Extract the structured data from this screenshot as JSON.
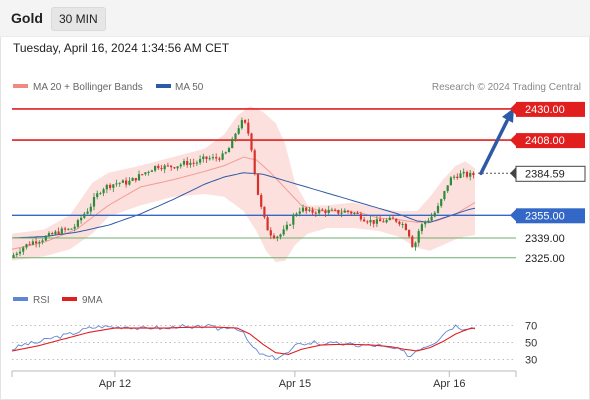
{
  "header": {
    "asset": "Gold",
    "timeframe": "30 MIN",
    "timestamp": "Tuesday, April 16, 2024 1:34:56 AM CET"
  },
  "legend": {
    "ma20_label": "MA 20 + Bollinger Bands",
    "ma50_label": "MA 50",
    "credit": "Research © 2024 Trading Central"
  },
  "colors": {
    "up_candle": "#2e8b3c",
    "down_candle": "#d8312a",
    "resistance": "#e21f1f",
    "support_main": "#3468c7",
    "support_minor": "#6fae6f",
    "arrow": "#2d5aa6",
    "bollinger_fill": "#fbd3d0",
    "ma20_line": "#f08a80",
    "ma50_line": "#2d5aa6",
    "rsi_line": "#5f86d6",
    "rsi_ma_line": "#e21f1f"
  },
  "chart_data": [
    {
      "type": "candlestick",
      "ylim": [
        2315,
        2437
      ],
      "x_ticks": [
        "Apr 12",
        "Apr 15",
        "Apr 16"
      ],
      "current_price": 2384.59,
      "forecast_target": 2430.0,
      "levels": [
        {
          "value": 2430.0,
          "label": "2430.00",
          "kind": "resistance"
        },
        {
          "value": 2408.0,
          "label": "2408.00",
          "kind": "resistance"
        },
        {
          "value": 2384.59,
          "label": "2384.59",
          "kind": "last"
        },
        {
          "value": 2355.0,
          "label": "2355.00",
          "kind": "pivot"
        },
        {
          "value": 2339.0,
          "label": "2339.00",
          "kind": "support"
        },
        {
          "value": 2325.0,
          "label": "2325.00",
          "kind": "support"
        }
      ],
      "close_path": [
        [
          0,
          2326
        ],
        [
          3,
          2332
        ],
        [
          6,
          2336
        ],
        [
          9,
          2338
        ],
        [
          12,
          2341
        ],
        [
          15,
          2344
        ],
        [
          18,
          2345
        ],
        [
          20,
          2348
        ],
        [
          22,
          2355
        ],
        [
          24,
          2360
        ],
        [
          26,
          2368
        ],
        [
          28,
          2374
        ],
        [
          30,
          2376
        ],
        [
          33,
          2378
        ],
        [
          36,
          2378
        ],
        [
          39,
          2382
        ],
        [
          42,
          2386
        ],
        [
          45,
          2390
        ],
        [
          48,
          2389
        ],
        [
          51,
          2390
        ],
        [
          54,
          2392
        ],
        [
          57,
          2392
        ],
        [
          60,
          2395
        ],
        [
          63,
          2395
        ],
        [
          66,
          2397
        ],
        [
          68,
          2404
        ],
        [
          70,
          2416
        ],
        [
          72,
          2422
        ],
        [
          74,
          2410
        ],
        [
          75,
          2395
        ],
        [
          76,
          2376
        ],
        [
          77,
          2364
        ],
        [
          78,
          2356
        ],
        [
          79,
          2348
        ],
        [
          80,
          2343
        ],
        [
          82,
          2340
        ],
        [
          84,
          2342
        ],
        [
          86,
          2348
        ],
        [
          88,
          2356
        ],
        [
          90,
          2360
        ],
        [
          92,
          2357
        ],
        [
          95,
          2358
        ],
        [
          98,
          2358
        ],
        [
          101,
          2357
        ],
        [
          104,
          2358
        ],
        [
          107,
          2356
        ],
        [
          110,
          2352
        ],
        [
          113,
          2350
        ],
        [
          116,
          2351
        ],
        [
          119,
          2352
        ],
        [
          121,
          2350
        ],
        [
          123,
          2345
        ],
        [
          124,
          2338
        ],
        [
          125,
          2330
        ],
        [
          126,
          2342
        ],
        [
          128,
          2350
        ],
        [
          130,
          2353
        ],
        [
          132,
          2358
        ],
        [
          134,
          2368
        ],
        [
          136,
          2380
        ],
        [
          138,
          2383
        ],
        [
          140,
          2384
        ],
        [
          142,
          2383
        ],
        [
          144,
          2384
        ]
      ],
      "ma20_path": [
        [
          0,
          2331
        ],
        [
          10,
          2336
        ],
        [
          20,
          2345
        ],
        [
          30,
          2362
        ],
        [
          40,
          2375
        ],
        [
          50,
          2380
        ],
        [
          60,
          2386
        ],
        [
          66,
          2390
        ],
        [
          72,
          2396
        ],
        [
          76,
          2394
        ],
        [
          80,
          2386
        ],
        [
          85,
          2374
        ],
        [
          90,
          2362
        ],
        [
          96,
          2358
        ],
        [
          102,
          2358
        ],
        [
          108,
          2357
        ],
        [
          114,
          2353
        ],
        [
          120,
          2352
        ],
        [
          126,
          2350
        ],
        [
          132,
          2351
        ],
        [
          138,
          2356
        ],
        [
          144,
          2364
        ]
      ],
      "bb_upper_path": [
        [
          0,
          2342
        ],
        [
          10,
          2345
        ],
        [
          18,
          2355
        ],
        [
          25,
          2378
        ],
        [
          30,
          2385
        ],
        [
          40,
          2390
        ],
        [
          50,
          2396
        ],
        [
          60,
          2402
        ],
        [
          66,
          2412
        ],
        [
          70,
          2425
        ],
        [
          74,
          2432
        ],
        [
          78,
          2428
        ],
        [
          82,
          2420
        ],
        [
          85,
          2405
        ],
        [
          88,
          2378
        ],
        [
          92,
          2362
        ],
        [
          98,
          2362
        ],
        [
          106,
          2364
        ],
        [
          114,
          2360
        ],
        [
          120,
          2358
        ],
        [
          126,
          2358
        ],
        [
          130,
          2368
        ],
        [
          134,
          2380
        ],
        [
          138,
          2390
        ],
        [
          141,
          2393
        ],
        [
          144,
          2388
        ]
      ],
      "bb_lower_path": [
        [
          0,
          2323
        ],
        [
          10,
          2326
        ],
        [
          18,
          2331
        ],
        [
          25,
          2342
        ],
        [
          30,
          2354
        ],
        [
          40,
          2362
        ],
        [
          50,
          2368
        ],
        [
          60,
          2370
        ],
        [
          66,
          2368
        ],
        [
          72,
          2358
        ],
        [
          76,
          2344
        ],
        [
          79,
          2330
        ],
        [
          82,
          2322
        ],
        [
          85,
          2323
        ],
        [
          88,
          2334
        ],
        [
          92,
          2342
        ],
        [
          98,
          2346
        ],
        [
          106,
          2346
        ],
        [
          114,
          2344
        ],
        [
          120,
          2340
        ],
        [
          126,
          2332
        ],
        [
          130,
          2330
        ],
        [
          134,
          2334
        ],
        [
          138,
          2338
        ],
        [
          141,
          2340
        ],
        [
          144,
          2341
        ]
      ],
      "ma50_path": [
        [
          0,
          2339
        ],
        [
          10,
          2340
        ],
        [
          20,
          2343
        ],
        [
          30,
          2348
        ],
        [
          40,
          2356
        ],
        [
          50,
          2366
        ],
        [
          60,
          2377
        ],
        [
          66,
          2382
        ],
        [
          72,
          2385
        ],
        [
          78,
          2384
        ],
        [
          84,
          2380
        ],
        [
          90,
          2376
        ],
        [
          96,
          2372
        ],
        [
          102,
          2368
        ],
        [
          108,
          2364
        ],
        [
          114,
          2360
        ],
        [
          120,
          2356
        ],
        [
          126,
          2351
        ],
        [
          130,
          2350
        ],
        [
          134,
          2353
        ],
        [
          138,
          2356
        ],
        [
          142,
          2359
        ],
        [
          144,
          2360
        ]
      ]
    },
    {
      "type": "line",
      "ylim": [
        20,
        80
      ],
      "y_ticks": [
        70,
        50,
        30
      ],
      "x_ticks": [
        "Apr 12",
        "Apr 15",
        "Apr 16"
      ],
      "series": [
        {
          "name": "RSI",
          "values_path": [
            [
              0,
              42
            ],
            [
              4,
              48
            ],
            [
              8,
              50
            ],
            [
              12,
              55
            ],
            [
              16,
              58
            ],
            [
              20,
              62
            ],
            [
              24,
              67
            ],
            [
              28,
              69
            ],
            [
              32,
              68
            ],
            [
              36,
              69
            ],
            [
              40,
              66
            ],
            [
              44,
              68
            ],
            [
              48,
              66
            ],
            [
              52,
              70
            ],
            [
              56,
              66
            ],
            [
              60,
              70
            ],
            [
              64,
              66
            ],
            [
              68,
              69
            ],
            [
              70,
              67
            ],
            [
              72,
              60
            ],
            [
              74,
              48
            ],
            [
              76,
              40
            ],
            [
              78,
              35
            ],
            [
              80,
              33
            ],
            [
              82,
              32
            ],
            [
              84,
              35
            ],
            [
              86,
              38
            ],
            [
              88,
              45
            ],
            [
              90,
              50
            ],
            [
              92,
              48
            ],
            [
              94,
              51
            ],
            [
              96,
              48
            ],
            [
              98,
              50
            ],
            [
              100,
              48
            ],
            [
              102,
              49
            ],
            [
              104,
              47
            ],
            [
              106,
              48
            ],
            [
              108,
              46
            ],
            [
              110,
              47
            ],
            [
              112,
              46
            ],
            [
              114,
              47
            ],
            [
              116,
              44
            ],
            [
              118,
              43
            ],
            [
              120,
              42
            ],
            [
              122,
              38
            ],
            [
              124,
              34
            ],
            [
              126,
              42
            ],
            [
              128,
              45
            ],
            [
              130,
              48
            ],
            [
              132,
              52
            ],
            [
              134,
              60
            ],
            [
              136,
              66
            ],
            [
              138,
              70
            ],
            [
              140,
              67
            ],
            [
              142,
              68
            ],
            [
              144,
              67
            ]
          ]
        },
        {
          "name": "9MA",
          "values_path": [
            [
              0,
              40
            ],
            [
              8,
              46
            ],
            [
              16,
              54
            ],
            [
              24,
              62
            ],
            [
              32,
              67
            ],
            [
              40,
              67
            ],
            [
              48,
              67
            ],
            [
              56,
              68
            ],
            [
              64,
              68
            ],
            [
              70,
              67
            ],
            [
              74,
              60
            ],
            [
              78,
              48
            ],
            [
              82,
              38
            ],
            [
              86,
              36
            ],
            [
              90,
              42
            ],
            [
              96,
              47
            ],
            [
              104,
              48
            ],
            [
              112,
              47
            ],
            [
              118,
              45
            ],
            [
              122,
              42
            ],
            [
              126,
              40
            ],
            [
              130,
              44
            ],
            [
              134,
              51
            ],
            [
              138,
              60
            ],
            [
              142,
              66
            ],
            [
              144,
              67
            ]
          ]
        }
      ]
    }
  ]
}
